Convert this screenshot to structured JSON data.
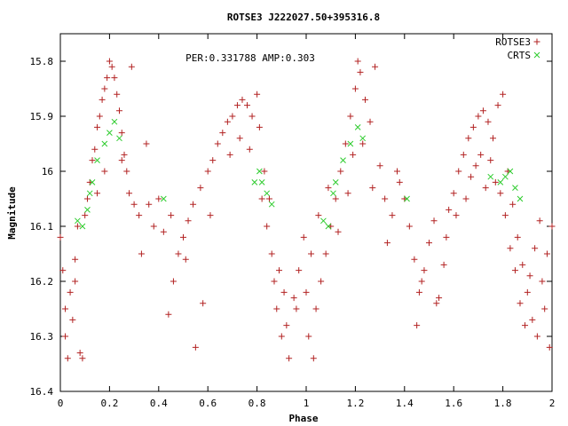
{
  "chart_data": {
    "type": "scatter",
    "title": "ROTSE3 J222027.50+395316.8",
    "annotation": "PER:0.331788 AMP:0.303",
    "xlabel": "Phase",
    "ylabel": "Magnitude",
    "xlim": [
      0,
      2
    ],
    "ylim": [
      16.4,
      15.75
    ],
    "y_inverted": true,
    "x_ticks": [
      0,
      0.2,
      0.4,
      0.6,
      0.8,
      1,
      1.2,
      1.4,
      1.6,
      1.8,
      2
    ],
    "x_tick_labels": [
      "0",
      "0.2",
      "0.4",
      "0.6",
      "0.8",
      "1",
      "1.2",
      "1.4",
      "1.6",
      "1.8",
      "2"
    ],
    "y_ticks": [
      15.8,
      15.9,
      16,
      16.1,
      16.2,
      16.3,
      16.4
    ],
    "y_tick_labels": [
      "15.8",
      "15.9",
      "16",
      "16.1",
      "16.2",
      "16.3",
      "16.4"
    ],
    "legend_position": "top-right",
    "series": [
      {
        "name": "ROTSE3",
        "marker": "plus",
        "color": "#b22222",
        "points": [
          [
            0.0,
            16.12
          ],
          [
            0.01,
            16.18
          ],
          [
            0.02,
            16.25
          ],
          [
            0.03,
            16.34
          ],
          [
            0.02,
            16.3
          ],
          [
            0.04,
            16.22
          ],
          [
            0.05,
            16.27
          ],
          [
            0.06,
            16.2
          ],
          [
            0.06,
            16.16
          ],
          [
            0.07,
            16.1
          ],
          [
            0.08,
            16.33
          ],
          [
            0.09,
            16.34
          ],
          [
            0.1,
            16.08
          ],
          [
            0.11,
            16.05
          ],
          [
            0.12,
            16.02
          ],
          [
            0.13,
            15.98
          ],
          [
            0.14,
            15.96
          ],
          [
            0.15,
            15.92
          ],
          [
            0.16,
            15.9
          ],
          [
            0.17,
            15.87
          ],
          [
            0.18,
            15.85
          ],
          [
            0.19,
            15.83
          ],
          [
            0.2,
            15.8
          ],
          [
            0.21,
            15.81
          ],
          [
            0.22,
            15.83
          ],
          [
            0.23,
            15.86
          ],
          [
            0.24,
            15.89
          ],
          [
            0.25,
            15.93
          ],
          [
            0.26,
            15.97
          ],
          [
            0.27,
            16.0
          ],
          [
            0.28,
            16.04
          ],
          [
            0.29,
            15.81
          ],
          [
            0.3,
            16.06
          ],
          [
            0.32,
            16.08
          ],
          [
            0.35,
            15.95
          ],
          [
            0.38,
            16.1
          ],
          [
            0.4,
            16.05
          ],
          [
            0.42,
            16.11
          ],
          [
            0.44,
            16.26
          ],
          [
            0.46,
            16.2
          ],
          [
            0.48,
            16.15
          ],
          [
            0.5,
            16.12
          ],
          [
            0.52,
            16.09
          ],
          [
            0.54,
            16.06
          ],
          [
            0.55,
            16.32
          ],
          [
            0.57,
            16.03
          ],
          [
            0.6,
            16.0
          ],
          [
            0.62,
            15.98
          ],
          [
            0.64,
            15.95
          ],
          [
            0.66,
            15.93
          ],
          [
            0.68,
            15.91
          ],
          [
            0.7,
            15.9
          ],
          [
            0.72,
            15.88
          ],
          [
            0.74,
            15.87
          ],
          [
            0.76,
            15.88
          ],
          [
            0.78,
            15.9
          ],
          [
            0.8,
            15.86
          ],
          [
            0.81,
            15.92
          ],
          [
            0.82,
            16.05
          ],
          [
            0.84,
            16.1
          ],
          [
            0.86,
            16.15
          ],
          [
            0.87,
            16.2
          ],
          [
            0.88,
            16.25
          ],
          [
            0.9,
            16.3
          ],
          [
            0.92,
            16.28
          ],
          [
            0.93,
            16.34
          ],
          [
            0.95,
            16.23
          ],
          [
            0.97,
            16.18
          ],
          [
            0.99,
            16.12
          ],
          [
            1.0,
            16.22
          ],
          [
            1.01,
            16.3
          ],
          [
            1.03,
            16.34
          ],
          [
            1.04,
            16.25
          ],
          [
            1.06,
            16.2
          ],
          [
            1.08,
            16.15
          ],
          [
            1.1,
            16.1
          ],
          [
            1.12,
            16.05
          ],
          [
            1.14,
            16.0
          ],
          [
            1.16,
            15.95
          ],
          [
            1.18,
            15.9
          ],
          [
            1.2,
            15.85
          ],
          [
            1.21,
            15.8
          ],
          [
            1.22,
            15.82
          ],
          [
            1.24,
            15.87
          ],
          [
            1.26,
            15.91
          ],
          [
            1.28,
            15.81
          ],
          [
            1.3,
            15.99
          ],
          [
            1.32,
            16.05
          ],
          [
            1.35,
            16.08
          ],
          [
            1.38,
            16.02
          ],
          [
            1.4,
            16.05
          ],
          [
            1.42,
            16.1
          ],
          [
            1.44,
            16.16
          ],
          [
            1.46,
            16.22
          ],
          [
            1.48,
            16.18
          ],
          [
            1.5,
            16.13
          ],
          [
            1.52,
            16.09
          ],
          [
            1.54,
            16.23
          ],
          [
            1.56,
            16.17
          ],
          [
            1.58,
            16.07
          ],
          [
            1.6,
            16.04
          ],
          [
            1.62,
            16.0
          ],
          [
            1.64,
            15.97
          ],
          [
            1.66,
            15.94
          ],
          [
            1.68,
            15.92
          ],
          [
            1.7,
            15.9
          ],
          [
            1.72,
            15.89
          ],
          [
            1.74,
            15.91
          ],
          [
            1.76,
            15.94
          ],
          [
            1.78,
            15.88
          ],
          [
            1.8,
            15.86
          ],
          [
            1.82,
            16.0
          ],
          [
            1.84,
            16.06
          ],
          [
            1.86,
            16.12
          ],
          [
            1.88,
            16.17
          ],
          [
            1.9,
            16.22
          ],
          [
            1.92,
            16.27
          ],
          [
            1.94,
            16.3
          ],
          [
            1.96,
            16.2
          ],
          [
            1.98,
            16.15
          ],
          [
            2.0,
            16.1
          ],
          [
            1.97,
            16.25
          ],
          [
            1.99,
            16.32
          ],
          [
            0.15,
            16.04
          ],
          [
            0.18,
            16.0
          ],
          [
            0.25,
            15.98
          ],
          [
            0.33,
            16.15
          ],
          [
            0.36,
            16.06
          ],
          [
            0.45,
            16.08
          ],
          [
            0.51,
            16.16
          ],
          [
            0.58,
            16.24
          ],
          [
            0.61,
            16.08
          ],
          [
            0.69,
            15.97
          ],
          [
            0.73,
            15.94
          ],
          [
            0.77,
            15.96
          ],
          [
            0.83,
            16.0
          ],
          [
            0.85,
            16.05
          ],
          [
            0.89,
            16.18
          ],
          [
            0.91,
            16.22
          ],
          [
            0.96,
            16.25
          ],
          [
            1.02,
            16.15
          ],
          [
            1.05,
            16.08
          ],
          [
            1.09,
            16.03
          ],
          [
            1.13,
            16.11
          ],
          [
            1.17,
            16.04
          ],
          [
            1.19,
            15.97
          ],
          [
            1.23,
            15.95
          ],
          [
            1.27,
            16.03
          ],
          [
            1.33,
            16.13
          ],
          [
            1.37,
            16.0
          ],
          [
            1.45,
            16.28
          ],
          [
            1.47,
            16.2
          ],
          [
            1.53,
            16.24
          ],
          [
            1.57,
            16.12
          ],
          [
            1.61,
            16.08
          ],
          [
            1.65,
            16.05
          ],
          [
            1.67,
            16.01
          ],
          [
            1.69,
            15.99
          ],
          [
            1.71,
            15.97
          ],
          [
            1.73,
            16.03
          ],
          [
            1.75,
            15.98
          ],
          [
            1.77,
            16.02
          ],
          [
            1.79,
            16.04
          ],
          [
            1.81,
            16.08
          ],
          [
            1.83,
            16.14
          ],
          [
            1.85,
            16.18
          ],
          [
            1.87,
            16.24
          ],
          [
            1.89,
            16.28
          ],
          [
            1.91,
            16.19
          ],
          [
            1.93,
            16.14
          ],
          [
            1.95,
            16.09
          ]
        ]
      },
      {
        "name": "CRTS",
        "marker": "cross",
        "color": "#2ecc2e",
        "points": [
          [
            0.07,
            16.09
          ],
          [
            0.09,
            16.1
          ],
          [
            0.11,
            16.07
          ],
          [
            0.12,
            16.04
          ],
          [
            0.13,
            16.02
          ],
          [
            0.15,
            15.98
          ],
          [
            0.18,
            15.95
          ],
          [
            0.2,
            15.93
          ],
          [
            0.22,
            15.91
          ],
          [
            0.24,
            15.94
          ],
          [
            0.42,
            16.05
          ],
          [
            0.79,
            16.02
          ],
          [
            0.81,
            16.0
          ],
          [
            0.82,
            16.02
          ],
          [
            0.84,
            16.04
          ],
          [
            0.86,
            16.06
          ],
          [
            1.07,
            16.09
          ],
          [
            1.09,
            16.1
          ],
          [
            1.11,
            16.04
          ],
          [
            1.12,
            16.02
          ],
          [
            1.15,
            15.98
          ],
          [
            1.18,
            15.95
          ],
          [
            1.21,
            15.92
          ],
          [
            1.23,
            15.94
          ],
          [
            1.41,
            16.05
          ],
          [
            1.75,
            16.01
          ],
          [
            1.79,
            16.02
          ],
          [
            1.81,
            16.01
          ],
          [
            1.83,
            16.0
          ],
          [
            1.85,
            16.03
          ],
          [
            1.87,
            16.05
          ]
        ]
      }
    ]
  }
}
